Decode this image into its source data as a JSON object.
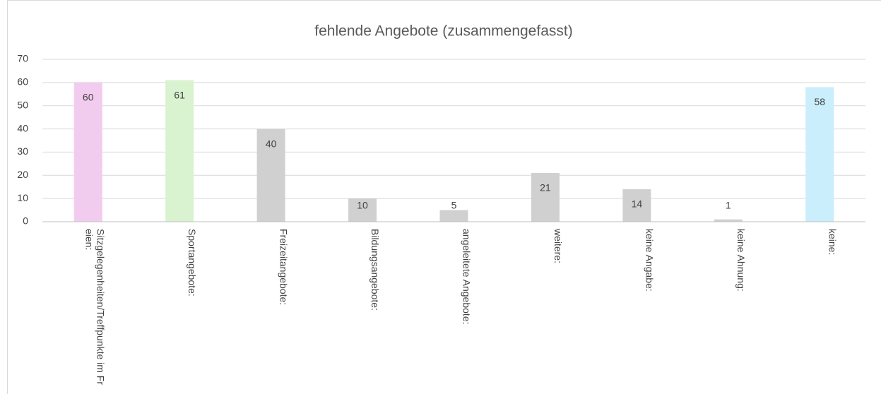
{
  "chart_data": {
    "type": "bar",
    "title": "fehlende Angebote (zusammengefasst)",
    "categories": [
      "Sitzgelegenheiten/Treffpunkte im Freien:",
      "Sportangebote:",
      "Freizeitangebote:",
      "Bildungsangebote:",
      "angeleitete Angebote:",
      "weitere:",
      "keine Angabe:",
      "keine Ahnung:",
      "keine:"
    ],
    "values": [
      60,
      61,
      40,
      10,
      5,
      21,
      14,
      1,
      58
    ],
    "colors": [
      "#f2ccee",
      "#d9f2d0",
      "#d0d0d0",
      "#d0d0d0",
      "#d0d0d0",
      "#d0d0d0",
      "#d0d0d0",
      "#d0d0d0",
      "#caeefb"
    ],
    "ylim": [
      0,
      70
    ],
    "yticks": [
      0,
      10,
      20,
      30,
      40,
      50,
      60,
      70
    ],
    "grid": true
  }
}
